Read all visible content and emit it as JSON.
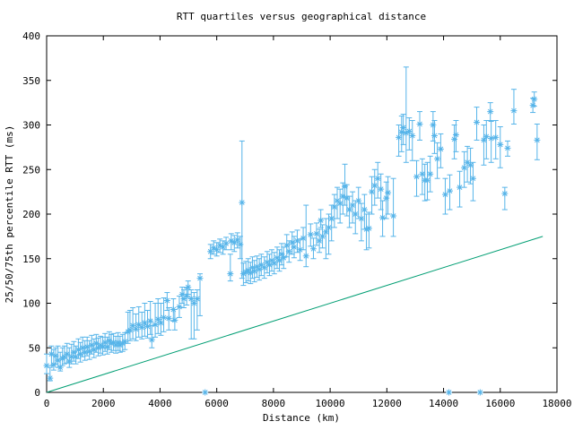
{
  "title": "RTT quartiles versus geographical distance",
  "colors": {
    "points": "#56b4e9",
    "reference_line": "#009e73",
    "axis": "#000000",
    "background": "#ffffff",
    "text": "#000000"
  },
  "chart_data": {
    "type": "scatter",
    "title": "RTT quartiles versus geographical distance",
    "xlabel": "Distance (km)",
    "ylabel": "25/50/75th percentile RTT (ms)",
    "xlim": [
      0,
      18000
    ],
    "ylim": [
      0,
      400
    ],
    "xticks": [
      0,
      2000,
      4000,
      6000,
      8000,
      10000,
      12000,
      14000,
      16000,
      18000
    ],
    "yticks": [
      0,
      50,
      100,
      150,
      200,
      250,
      300,
      350,
      400
    ],
    "grid": false,
    "legend": "none",
    "series": [
      {
        "name": "RTT 25/50/75th percentiles",
        "type": "errorbar-scatter",
        "marker": "asterisk",
        "color": "#56b4e9",
        "points_format": [
          "distance_km",
          "q25_ms",
          "median_ms",
          "q75_ms"
        ],
        "points": [
          [
            0,
            21,
            30,
            43
          ],
          [
            120,
            13,
            16,
            28
          ],
          [
            170,
            30,
            43,
            52
          ],
          [
            250,
            25,
            31,
            48
          ],
          [
            320,
            32,
            41,
            50
          ],
          [
            400,
            28,
            36,
            52
          ],
          [
            480,
            24,
            28,
            45
          ],
          [
            560,
            30,
            38,
            50
          ],
          [
            630,
            32,
            40,
            52
          ],
          [
            720,
            33,
            43,
            55
          ],
          [
            800,
            28,
            35,
            50
          ],
          [
            880,
            32,
            40,
            54
          ],
          [
            960,
            35,
            45,
            57
          ],
          [
            1030,
            32,
            40,
            52
          ],
          [
            1120,
            38,
            48,
            60
          ],
          [
            1190,
            34,
            43,
            56
          ],
          [
            1270,
            40,
            50,
            62
          ],
          [
            1350,
            36,
            45,
            58
          ],
          [
            1430,
            41,
            51,
            62
          ],
          [
            1510,
            37,
            46,
            58
          ],
          [
            1590,
            43,
            53,
            64
          ],
          [
            1670,
            39,
            48,
            60
          ],
          [
            1750,
            45,
            55,
            65
          ],
          [
            1820,
            41,
            50,
            61
          ],
          [
            1900,
            44,
            53,
            63
          ],
          [
            1980,
            42,
            51,
            62
          ],
          [
            2060,
            46,
            56,
            66
          ],
          [
            2140,
            43,
            51,
            62
          ],
          [
            2210,
            48,
            58,
            68
          ],
          [
            2280,
            45,
            55,
            65
          ],
          [
            2360,
            47,
            56,
            66
          ],
          [
            2440,
            44,
            53,
            63
          ],
          [
            2520,
            47,
            56,
            67
          ],
          [
            2590,
            45,
            53,
            63
          ],
          [
            2680,
            46,
            55,
            65
          ],
          [
            2760,
            48,
            57,
            67
          ],
          [
            2870,
            55,
            68,
            90
          ],
          [
            2940,
            58,
            70,
            92
          ],
          [
            3040,
            60,
            75,
            95
          ],
          [
            3150,
            58,
            71,
            88
          ],
          [
            3250,
            62,
            76,
            96
          ],
          [
            3360,
            60,
            73,
            90
          ],
          [
            3460,
            63,
            78,
            100
          ],
          [
            3560,
            61,
            74,
            92
          ],
          [
            3660,
            65,
            80,
            102
          ],
          [
            3710,
            50,
            59,
            75
          ],
          [
            3830,
            62,
            76,
            100
          ],
          [
            3930,
            66,
            82,
            105
          ],
          [
            4030,
            64,
            78,
            100
          ],
          [
            4130,
            68,
            84,
            106
          ],
          [
            4250,
            92,
            103,
            112
          ],
          [
            4310,
            70,
            83,
            95
          ],
          [
            4470,
            80,
            93,
            105
          ],
          [
            4520,
            70,
            81,
            93
          ],
          [
            4680,
            84,
            96,
            108
          ],
          [
            4780,
            100,
            110,
            118
          ],
          [
            4840,
            95,
            105,
            115
          ],
          [
            4940,
            98,
            108,
            117
          ],
          [
            4990,
            110,
            118,
            125
          ],
          [
            5100,
            60,
            105,
            115
          ],
          [
            5200,
            60,
            100,
            112
          ],
          [
            5310,
            70,
            105,
            115
          ],
          [
            5410,
            86,
            128,
            133
          ],
          [
            5590,
            0,
            0,
            0
          ],
          [
            5780,
            150,
            158,
            166
          ],
          [
            5890,
            155,
            162,
            170
          ],
          [
            6000,
            153,
            160,
            168
          ],
          [
            6110,
            157,
            165,
            172
          ],
          [
            6220,
            155,
            163,
            170
          ],
          [
            6330,
            160,
            167,
            174
          ],
          [
            6480,
            125,
            133,
            155
          ],
          [
            6510,
            160,
            170,
            178
          ],
          [
            6620,
            158,
            168,
            176
          ],
          [
            6730,
            162,
            171,
            179
          ],
          [
            6830,
            150,
            166,
            175
          ],
          [
            6890,
            128,
            213,
            282
          ],
          [
            6940,
            120,
            133,
            145
          ],
          [
            7030,
            123,
            135,
            147
          ],
          [
            7110,
            125,
            137,
            150
          ],
          [
            7190,
            122,
            134,
            146
          ],
          [
            7260,
            128,
            140,
            152
          ],
          [
            7330,
            124,
            136,
            148
          ],
          [
            7420,
            129,
            141,
            153
          ],
          [
            7500,
            126,
            138,
            150
          ],
          [
            7570,
            131,
            143,
            155
          ],
          [
            7680,
            128,
            140,
            152
          ],
          [
            7780,
            134,
            146,
            158
          ],
          [
            7860,
            131,
            143,
            155
          ],
          [
            7940,
            136,
            148,
            160
          ],
          [
            8030,
            133,
            145,
            157
          ],
          [
            8130,
            139,
            151,
            163
          ],
          [
            8210,
            136,
            148,
            160
          ],
          [
            8290,
            143,
            155,
            167
          ],
          [
            8360,
            139,
            151,
            163
          ],
          [
            8470,
            152,
            165,
            177
          ],
          [
            8550,
            146,
            158,
            170
          ],
          [
            8660,
            155,
            168,
            180
          ],
          [
            8730,
            151,
            163,
            175
          ],
          [
            8840,
            157,
            170,
            182
          ],
          [
            8940,
            148,
            160,
            172
          ],
          [
            9050,
            160,
            173,
            185
          ],
          [
            9150,
            141,
            153,
            210
          ],
          [
            9310,
            164,
            177,
            189
          ],
          [
            9410,
            150,
            161,
            173
          ],
          [
            9520,
            165,
            178,
            190
          ],
          [
            9620,
            157,
            170,
            183
          ],
          [
            9670,
            185,
            193,
            205
          ],
          [
            9730,
            162,
            175,
            188
          ],
          [
            9850,
            150,
            180,
            195
          ],
          [
            9950,
            155,
            185,
            200
          ],
          [
            10050,
            170,
            195,
            210
          ],
          [
            10150,
            185,
            208,
            222
          ],
          [
            10250,
            195,
            215,
            230
          ],
          [
            10350,
            190,
            212,
            228
          ],
          [
            10450,
            200,
            220,
            235
          ],
          [
            10520,
            210,
            231,
            256
          ],
          [
            10590,
            198,
            218,
            233
          ],
          [
            10680,
            185,
            205,
            220
          ],
          [
            10790,
            190,
            210,
            225
          ],
          [
            10890,
            178,
            200,
            215
          ],
          [
            11000,
            195,
            215,
            230
          ],
          [
            11100,
            170,
            195,
            212
          ],
          [
            11210,
            183,
            205,
            222
          ],
          [
            11280,
            160,
            183,
            200
          ],
          [
            11370,
            162,
            184,
            202
          ],
          [
            11470,
            200,
            225,
            242
          ],
          [
            11570,
            210,
            232,
            250
          ],
          [
            11680,
            218,
            240,
            258
          ],
          [
            11790,
            205,
            228,
            245
          ],
          [
            11850,
            175,
            196,
            215
          ],
          [
            11980,
            195,
            218,
            236
          ],
          [
            12040,
            200,
            224,
            242
          ],
          [
            12230,
            175,
            198,
            240
          ],
          [
            12420,
            265,
            286,
            300
          ],
          [
            12520,
            270,
            292,
            310
          ],
          [
            12580,
            278,
            297,
            312
          ],
          [
            12680,
            258,
            291,
            365
          ],
          [
            12790,
            272,
            293,
            308
          ],
          [
            12900,
            260,
            288,
            305
          ],
          [
            13050,
            220,
            242,
            260
          ],
          [
            13160,
            283,
            301,
            315
          ],
          [
            13250,
            222,
            245,
            262
          ],
          [
            13340,
            215,
            238,
            256
          ],
          [
            13430,
            216,
            238,
            258
          ],
          [
            13530,
            225,
            245,
            265
          ],
          [
            13630,
            282,
            300,
            315
          ],
          [
            13680,
            268,
            288,
            305
          ],
          [
            13780,
            240,
            262,
            280
          ],
          [
            13900,
            252,
            273,
            290
          ],
          [
            14060,
            200,
            222,
            240
          ],
          [
            14190,
            0,
            0,
            0
          ],
          [
            14220,
            205,
            226,
            244
          ],
          [
            14380,
            262,
            284,
            300
          ],
          [
            14440,
            270,
            289,
            305
          ],
          [
            14570,
            208,
            230,
            248
          ],
          [
            14730,
            230,
            252,
            270
          ],
          [
            14840,
            236,
            258,
            276
          ],
          [
            14950,
            234,
            255,
            274
          ],
          [
            15040,
            215,
            240,
            258
          ],
          [
            15170,
            283,
            303,
            320
          ],
          [
            15290,
            0,
            0,
            0
          ],
          [
            15420,
            255,
            283,
            300
          ],
          [
            15510,
            262,
            287,
            305
          ],
          [
            15650,
            305,
            315,
            325
          ],
          [
            15680,
            258,
            285,
            304
          ],
          [
            15840,
            262,
            286,
            305
          ],
          [
            16000,
            252,
            278,
            298
          ],
          [
            16160,
            205,
            223,
            230
          ],
          [
            16260,
            265,
            274,
            282
          ],
          [
            16480,
            301,
            316,
            340
          ],
          [
            17150,
            314,
            322,
            330
          ],
          [
            17200,
            321,
            329,
            337
          ],
          [
            17300,
            261,
            283,
            301
          ]
        ]
      },
      {
        "name": "reference line",
        "type": "line",
        "color": "#009e73",
        "points_format": [
          "distance_km",
          "rtt_ms"
        ],
        "points": [
          [
            0,
            0
          ],
          [
            17500,
            175
          ]
        ]
      }
    ]
  }
}
